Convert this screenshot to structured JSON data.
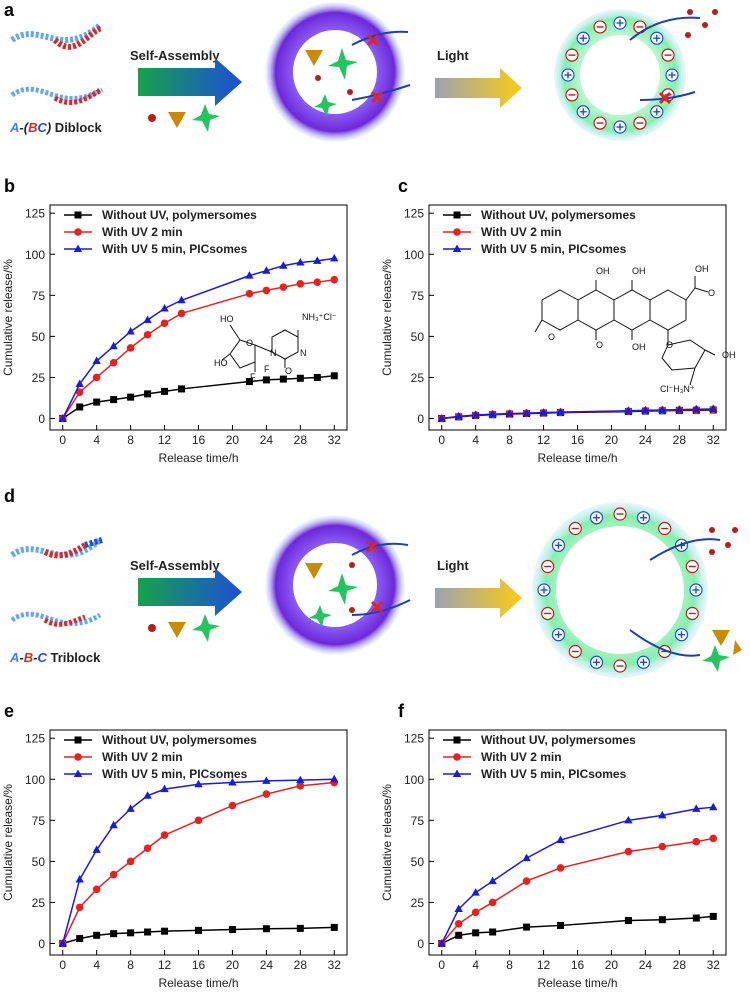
{
  "chart_data": [
    {
      "type": "line",
      "label": "b",
      "xlabel": "Release time/h",
      "ylabel": "Cumulative release/%",
      "x": [
        0,
        2,
        4,
        6,
        8,
        10,
        12,
        14,
        22,
        24,
        26,
        28,
        30,
        32
      ],
      "series": [
        {
          "name": "Without UV, polymersomes",
          "color": "#000000",
          "marker": "square",
          "values": [
            0,
            7,
            10,
            11.5,
            13,
            15,
            16.5,
            18,
            22.5,
            23.5,
            24,
            24.5,
            25,
            26
          ]
        },
        {
          "name": "With UV 2 min",
          "color": "#e8201f",
          "marker": "circle",
          "values": [
            0,
            16,
            25,
            34,
            43,
            51,
            58,
            64,
            76,
            78,
            80,
            82,
            83,
            84.5
          ]
        },
        {
          "name": "With UV 5 min, PICsomes",
          "color": "#1a1adc",
          "marker": "triangle",
          "values": [
            0,
            21,
            35,
            44,
            53,
            60,
            67,
            72,
            87,
            90,
            93,
            95,
            96,
            97.5
          ]
        }
      ],
      "xlim": [
        -1.5,
        33.5
      ],
      "ylim": [
        -7,
        130
      ],
      "xticks": [
        0,
        4,
        8,
        12,
        16,
        20,
        24,
        28,
        32
      ],
      "yticks": [
        0,
        25,
        50,
        75,
        100,
        125
      ],
      "structure_labels": [
        "NH₃⁺Cl⁻",
        "N",
        "N",
        "O",
        "O",
        "HO",
        "HO",
        "F",
        "F"
      ]
    },
    {
      "type": "line",
      "label": "c",
      "xlabel": "Release time/h",
      "ylabel": "Cumulative release/%",
      "x": [
        0,
        2,
        4,
        6,
        8,
        10,
        12,
        14,
        22,
        24,
        26,
        28,
        30,
        32
      ],
      "series": [
        {
          "name": "Without UV, polymersomes",
          "color": "#000000",
          "marker": "square",
          "values": [
            0,
            1,
            1.8,
            2.3,
            2.7,
            3,
            3.3,
            3.6,
            4.2,
            4.5,
            4.7,
            4.9,
            5,
            5.2
          ]
        },
        {
          "name": "With UV 2 min",
          "color": "#e8201f",
          "marker": "circle",
          "values": [
            0,
            1.2,
            2,
            2.5,
            2.9,
            3.2,
            3.5,
            3.8,
            4.5,
            4.8,
            5,
            5.2,
            5.4,
            5.6
          ]
        },
        {
          "name": "With UV 5 min, PICsomes",
          "color": "#1a1adc",
          "marker": "triangle",
          "values": [
            0,
            1.3,
            2.1,
            2.6,
            3,
            3.3,
            3.6,
            3.9,
            4.7,
            5,
            5.2,
            5.4,
            5.6,
            5.8
          ]
        }
      ],
      "xlim": [
        -1.5,
        33.5
      ],
      "ylim": [
        -7,
        130
      ],
      "xticks": [
        0,
        4,
        8,
        12,
        16,
        20,
        24,
        28,
        32
      ],
      "yticks": [
        0,
        25,
        50,
        75,
        100,
        125
      ],
      "structure_labels": [
        "OH",
        "O",
        "OH",
        "OH",
        "O",
        "O",
        "OH",
        "O",
        "OH",
        "Cl⁻H₃N⁺"
      ]
    },
    {
      "type": "line",
      "label": "e",
      "xlabel": "Release time/h",
      "ylabel": "Cumulative release/%",
      "x": [
        0,
        2,
        4,
        6,
        8,
        10,
        12,
        16,
        20,
        24,
        28,
        32
      ],
      "series": [
        {
          "name": "Without UV, polymersomes",
          "color": "#000000",
          "marker": "square",
          "values": [
            0,
            3,
            5,
            6,
            6.5,
            7,
            7.5,
            8,
            8.5,
            9,
            9.2,
            9.8
          ]
        },
        {
          "name": "With UV 2 min",
          "color": "#e8201f",
          "marker": "circle",
          "values": [
            0,
            22,
            33,
            42,
            50,
            58,
            66,
            75,
            84,
            91,
            96,
            98
          ]
        },
        {
          "name": "With UV 5 min, PICsomes",
          "color": "#1a1adc",
          "marker": "triangle",
          "values": [
            0,
            39,
            57,
            72,
            82,
            90,
            94,
            97,
            98,
            99,
            99.5,
            100
          ]
        }
      ],
      "xlim": [
        -1.5,
        33.5
      ],
      "ylim": [
        -7,
        130
      ],
      "xticks": [
        0,
        4,
        8,
        12,
        16,
        20,
        24,
        28,
        32
      ],
      "yticks": [
        0,
        25,
        50,
        75,
        100,
        125
      ]
    },
    {
      "type": "line",
      "label": "f",
      "xlabel": "Release time/h",
      "ylabel": "Cumulative release/%",
      "x": [
        0,
        2,
        4,
        6,
        10,
        14,
        22,
        26,
        30,
        32
      ],
      "series": [
        {
          "name": "Without UV, polymersomes",
          "color": "#000000",
          "marker": "square",
          "values": [
            0,
            5,
            6.5,
            7,
            10,
            11,
            14,
            14.5,
            15.5,
            16.5
          ]
        },
        {
          "name": "With UV 2 min",
          "color": "#e8201f",
          "marker": "circle",
          "values": [
            0,
            12,
            19,
            25,
            38,
            46,
            56,
            59,
            62,
            64
          ]
        },
        {
          "name": "With UV 5 min, PICsomes",
          "color": "#1a1adc",
          "marker": "triangle",
          "values": [
            0,
            21,
            31,
            38,
            52,
            63,
            75,
            78,
            82,
            83
          ]
        }
      ],
      "xlim": [
        -1.5,
        33.5
      ],
      "ylim": [
        -7,
        130
      ],
      "xticks": [
        0,
        4,
        8,
        12,
        16,
        20,
        24,
        28,
        32
      ],
      "yticks": [
        0,
        25,
        50,
        75,
        100,
        125
      ]
    }
  ],
  "diagrams": [
    {
      "label": "a",
      "step1": "Self-Assembly",
      "step2": "Light",
      "polymer": [
        "A",
        "-(",
        "B",
        "C",
        ")",
        " Diblock"
      ]
    },
    {
      "label": "d",
      "step1": "Self-Assembly",
      "step2": "Light",
      "polymer": [
        "A",
        "-",
        "B",
        "-",
        "C",
        " Triblock"
      ]
    }
  ]
}
